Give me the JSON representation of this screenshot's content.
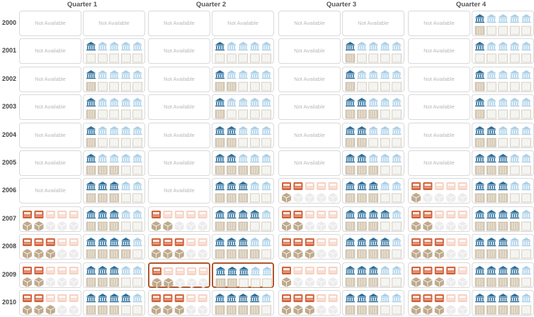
{
  "quarters": [
    "Quarter 1",
    "Quarter 2",
    "Quarter 3",
    "Quarter 4"
  ],
  "years": [
    "2000",
    "2001",
    "2002",
    "2003",
    "2004",
    "2005",
    "2006",
    "2007",
    "2008",
    "2009",
    "2010"
  ],
  "na_label": "Not Available",
  "colors": {
    "left_top_dark": "#d2623a",
    "left_top_light": "#f5d2c4",
    "left_bottom_dark": "#bfaa8c",
    "left_bottom_light": "#ececec",
    "right_top_dark": "#2d6f9b",
    "right_top_light": "#a9cfe8",
    "right_bottom_dark": "#d8cdb9",
    "right_bottom_light": "#f2f2ee",
    "selected_border": "#b0562c"
  },
  "icons": {
    "left_top": "truck-icon",
    "left_bottom": "box-icon",
    "right_top": "building-icon",
    "right_bottom": "container-icon"
  },
  "selected": {
    "year": "2009",
    "quarter": "Quarter 2"
  },
  "chart_data": {
    "type": "table",
    "icons_per_row": 5,
    "rows": [
      {
        "year": "2000",
        "quarters": [
          {
            "left": null,
            "right": null
          },
          {
            "left": null,
            "right": null
          },
          {
            "left": null,
            "right": null
          },
          {
            "left": null,
            "right": {
              "top": 1,
              "bottom": 1
            }
          }
        ]
      },
      {
        "year": "2001",
        "quarters": [
          {
            "left": null,
            "right": {
              "top": 1,
              "bottom": 0
            }
          },
          {
            "left": null,
            "right": {
              "top": 1,
              "bottom": 0
            }
          },
          {
            "left": null,
            "right": {
              "top": 1,
              "bottom": 1
            }
          },
          {
            "left": null,
            "right": {
              "top": 1,
              "bottom": 0
            }
          }
        ]
      },
      {
        "year": "2002",
        "quarters": [
          {
            "left": null,
            "right": {
              "top": 1,
              "bottom": 1
            }
          },
          {
            "left": null,
            "right": {
              "top": 1,
              "bottom": 2
            }
          },
          {
            "left": null,
            "right": {
              "top": 1,
              "bottom": 1
            }
          },
          {
            "left": null,
            "right": {
              "top": 1,
              "bottom": 1
            }
          }
        ]
      },
      {
        "year": "2003",
        "quarters": [
          {
            "left": null,
            "right": {
              "top": 1,
              "bottom": 1
            }
          },
          {
            "left": null,
            "right": {
              "top": 1,
              "bottom": 1
            }
          },
          {
            "left": null,
            "right": {
              "top": 2,
              "bottom": 3
            }
          },
          {
            "left": null,
            "right": {
              "top": 1,
              "bottom": 1
            }
          }
        ]
      },
      {
        "year": "2004",
        "quarters": [
          {
            "left": null,
            "right": {
              "top": 1,
              "bottom": 1
            }
          },
          {
            "left": null,
            "right": {
              "top": 2,
              "bottom": 2
            }
          },
          {
            "left": null,
            "right": {
              "top": 2,
              "bottom": 2
            }
          },
          {
            "left": null,
            "right": {
              "top": 2,
              "bottom": 2
            }
          }
        ]
      },
      {
        "year": "2005",
        "quarters": [
          {
            "left": null,
            "right": {
              "top": 1,
              "bottom": 3
            }
          },
          {
            "left": null,
            "right": {
              "top": 2,
              "bottom": 4
            }
          },
          {
            "left": null,
            "right": {
              "top": 2,
              "bottom": 3
            }
          },
          {
            "left": null,
            "right": {
              "top": 3,
              "bottom": 3
            }
          }
        ]
      },
      {
        "year": "2006",
        "quarters": [
          {
            "left": null,
            "right": {
              "top": 3,
              "bottom": 3
            }
          },
          {
            "left": null,
            "right": {
              "top": 3,
              "bottom": 3
            }
          },
          {
            "left": {
              "top": 2,
              "bottom": 1
            },
            "right": {
              "top": 3,
              "bottom": 3
            }
          },
          {
            "left": {
              "top": 2,
              "bottom": 1
            },
            "right": {
              "top": 3,
              "bottom": 3
            }
          }
        ]
      },
      {
        "year": "2007",
        "quarters": [
          {
            "left": {
              "top": 2,
              "bottom": 2
            },
            "right": {
              "top": 3,
              "bottom": 3
            }
          },
          {
            "left": {
              "top": 1,
              "bottom": 2
            },
            "right": {
              "top": 4,
              "bottom": 3
            }
          },
          {
            "left": {
              "top": 2,
              "bottom": 2
            },
            "right": {
              "top": 4,
              "bottom": 3
            }
          },
          {
            "left": {
              "top": 2,
              "bottom": 2
            },
            "right": {
              "top": 4,
              "bottom": 4
            }
          }
        ]
      },
      {
        "year": "2008",
        "quarters": [
          {
            "left": {
              "top": 3,
              "bottom": 3
            },
            "right": {
              "top": 4,
              "bottom": 4
            }
          },
          {
            "left": {
              "top": 3,
              "bottom": 3
            },
            "right": {
              "top": 3,
              "bottom": 4
            }
          },
          {
            "left": {
              "top": 3,
              "bottom": 3
            },
            "right": {
              "top": 4,
              "bottom": 4
            }
          },
          {
            "left": {
              "top": 3,
              "bottom": 3
            },
            "right": {
              "top": 3,
              "bottom": 3
            }
          }
        ]
      },
      {
        "year": "2009",
        "quarters": [
          {
            "left": {
              "top": 2,
              "bottom": 2
            },
            "right": {
              "top": 3,
              "bottom": 3
            }
          },
          {
            "left": {
              "top": 1,
              "bottom": 2
            },
            "right": {
              "top": 3,
              "bottom": 2
            }
          },
          {
            "left": {
              "top": 1,
              "bottom": 1
            },
            "right": {
              "top": 3,
              "bottom": 3
            }
          },
          {
            "left": {
              "top": 4,
              "bottom": 3
            },
            "right": {
              "top": 4,
              "bottom": 4
            }
          }
        ]
      },
      {
        "year": "2010",
        "quarters": [
          {
            "left": {
              "top": 2,
              "bottom": 3
            },
            "right": {
              "top": 4,
              "bottom": 3
            }
          },
          {
            "left": {
              "top": 3,
              "bottom": 3
            },
            "right": {
              "top": 4,
              "bottom": 4
            }
          },
          {
            "left": {
              "top": 3,
              "bottom": 3
            },
            "right": {
              "top": 3,
              "bottom": 3
            }
          },
          {
            "left": {
              "top": 3,
              "bottom": 3
            },
            "right": {
              "top": 4,
              "bottom": 4
            }
          }
        ]
      }
    ]
  }
}
